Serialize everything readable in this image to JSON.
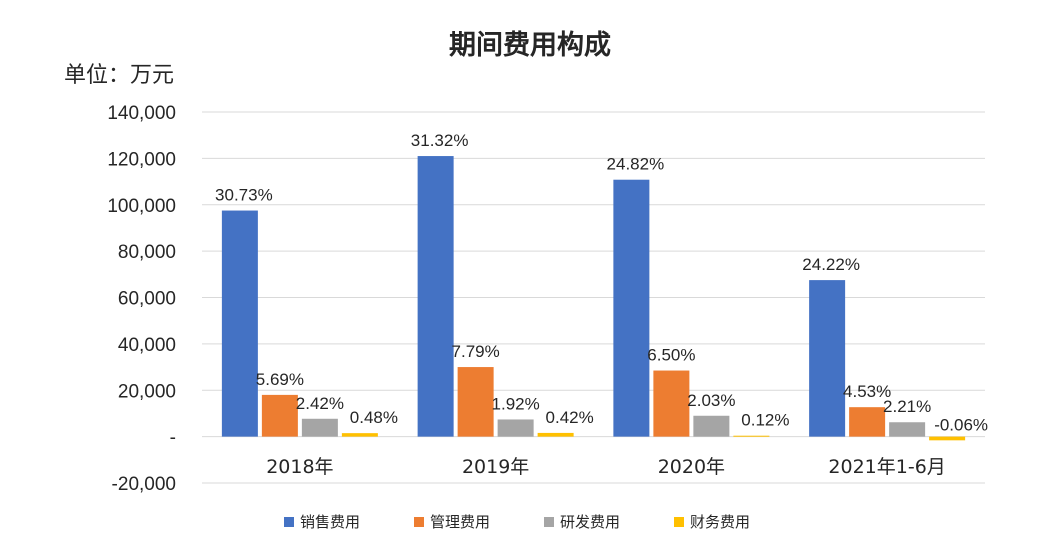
{
  "chart_data": {
    "type": "bar",
    "title": "期间费用构成",
    "unit_label": "单位：万元",
    "categories": [
      "2018年",
      "2019年",
      "2020年",
      "2021年1-6月"
    ],
    "ylim": [
      -20000,
      140000
    ],
    "yticks": [
      {
        "value": 140000,
        "label": "140,000"
      },
      {
        "value": 120000,
        "label": "120,000"
      },
      {
        "value": 100000,
        "label": "100,000"
      },
      {
        "value": 80000,
        "label": "80,000"
      },
      {
        "value": 60000,
        "label": "60,000"
      },
      {
        "value": 40000,
        "label": "40,000"
      },
      {
        "value": 20000,
        "label": "20,000"
      },
      {
        "value": 0,
        "label": "-"
      },
      {
        "value": -20000,
        "label": "-20,000"
      }
    ],
    "grid": true,
    "legend_position": "bottom",
    "series": [
      {
        "name": "销售费用",
        "color": "#4472C4",
        "values": [
          97500,
          121000,
          110800,
          67500
        ],
        "labels": [
          "30.73%",
          "31.32%",
          "24.82%",
          "24.22%"
        ]
      },
      {
        "name": "管理费用",
        "color": "#ED7D31",
        "values": [
          18000,
          30000,
          28500,
          12700
        ],
        "labels": [
          "5.69%",
          "7.79%",
          "6.50%",
          "4.53%"
        ]
      },
      {
        "name": "研发费用",
        "color": "#A5A5A5",
        "values": [
          7700,
          7400,
          9000,
          6200
        ],
        "labels": [
          "2.42%",
          "1.92%",
          "2.03%",
          "2.21%"
        ]
      },
      {
        "name": "财务费用",
        "color": "#FFC000",
        "values": [
          1500,
          1600,
          400,
          -1600
        ],
        "labels": [
          "0.48%",
          "0.42%",
          "0.12%",
          "-0.06%"
        ]
      }
    ]
  }
}
